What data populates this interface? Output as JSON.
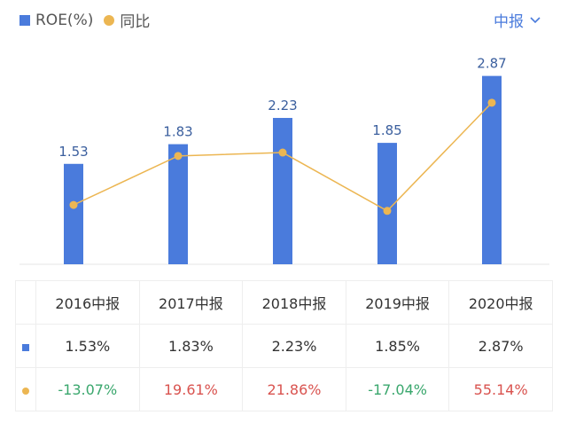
{
  "legend": {
    "bar_label": "ROE(%)",
    "line_label": "同比"
  },
  "period_selector": {
    "label": "中报",
    "icon": "chevron-down-icon"
  },
  "colors": {
    "bar": "#4a7bdc",
    "line": "#ecb652",
    "positive": "#d9534f",
    "negative": "#3aa76d"
  },
  "chart_data": {
    "type": "bar+line",
    "categories": [
      "2016中报",
      "2017中报",
      "2018中报",
      "2019中报",
      "2020中报"
    ],
    "series": [
      {
        "name": "ROE(%)",
        "type": "bar",
        "values": [
          1.53,
          1.83,
          2.23,
          1.85,
          2.87
        ],
        "labels": [
          "1.53",
          "1.83",
          "2.23",
          "1.85",
          "2.87"
        ]
      },
      {
        "name": "同比",
        "type": "line",
        "values": [
          -13.07,
          19.61,
          21.86,
          -17.04,
          55.14
        ]
      }
    ]
  },
  "table": {
    "headers": [
      "2016中报",
      "2017中报",
      "2018中报",
      "2019中报",
      "2020中报"
    ],
    "roe": [
      "1.53%",
      "1.83%",
      "2.23%",
      "1.85%",
      "2.87%"
    ],
    "yoy": [
      "-13.07%",
      "19.61%",
      "21.86%",
      "-17.04%",
      "55.14%"
    ]
  }
}
